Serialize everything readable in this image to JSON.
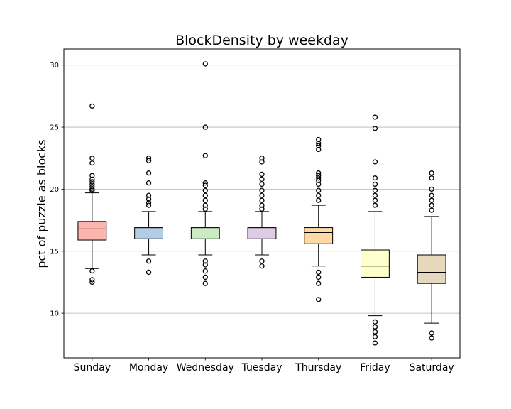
{
  "chart_data": {
    "type": "box",
    "title": "BlockDensity by weekday",
    "xlabel": "",
    "ylabel": "pct of puzzle as blocks",
    "ylim": [
      6.4,
      31.3
    ],
    "yticks": [
      10,
      15,
      20,
      25,
      30
    ],
    "grid": "horizontal",
    "categories": [
      "Sunday",
      "Monday",
      "Wednesday",
      "Tuesday",
      "Thursday",
      "Friday",
      "Saturday"
    ],
    "boxes": [
      {
        "category": "Sunday",
        "whisker_low": 13.6,
        "q1": 15.9,
        "median": 16.8,
        "q3": 17.4,
        "whisker_high": 19.7,
        "color": "#fbb4ae",
        "outliers": [
          26.7,
          22.5,
          22.1,
          21.1,
          20.8,
          20.6,
          20.4,
          20.2,
          20.0,
          19.9,
          13.4,
          12.7,
          12.5
        ]
      },
      {
        "category": "Monday",
        "whisker_low": 14.7,
        "q1": 16.0,
        "median": 16.8,
        "q3": 16.9,
        "whisker_high": 18.2,
        "color": "#b3cde3",
        "outliers": [
          22.5,
          22.3,
          21.3,
          20.5,
          19.5,
          19.2,
          18.9,
          18.7,
          14.2,
          13.3
        ]
      },
      {
        "category": "Wednesday",
        "whisker_low": 14.7,
        "q1": 16.0,
        "median": 16.8,
        "q3": 16.9,
        "whisker_high": 18.2,
        "color": "#ccebc5",
        "outliers": [
          30.1,
          25.0,
          22.7,
          20.5,
          20.3,
          19.9,
          19.5,
          19.1,
          18.7,
          18.4,
          14.2,
          13.9,
          13.4,
          12.9,
          12.4
        ]
      },
      {
        "category": "Tuesday",
        "whisker_low": 14.7,
        "q1": 16.0,
        "median": 16.8,
        "q3": 16.9,
        "whisker_high": 18.2,
        "color": "#decbe4",
        "outliers": [
          22.5,
          22.2,
          21.2,
          20.8,
          20.4,
          19.9,
          19.5,
          19.1,
          18.7,
          18.4,
          14.2,
          13.8
        ]
      },
      {
        "category": "Thursday",
        "whisker_low": 13.8,
        "q1": 15.6,
        "median": 16.5,
        "q3": 16.9,
        "whisker_high": 18.7,
        "color": "#fed9a6",
        "outliers": [
          24.0,
          23.7,
          23.5,
          23.2,
          21.3,
          21.1,
          20.9,
          20.7,
          20.4,
          19.9,
          19.5,
          19.1,
          13.3,
          12.9,
          12.4,
          11.1
        ]
      },
      {
        "category": "Friday",
        "whisker_low": 9.8,
        "q1": 12.9,
        "median": 13.8,
        "q3": 15.1,
        "whisker_high": 18.2,
        "color": "#ffffcc",
        "outliers": [
          25.8,
          24.9,
          22.2,
          20.9,
          20.4,
          19.9,
          19.5,
          19.1,
          18.7,
          9.3,
          8.9,
          8.5,
          8.1,
          7.6
        ]
      },
      {
        "category": "Saturday",
        "whisker_low": 9.2,
        "q1": 12.4,
        "median": 13.3,
        "q3": 14.7,
        "whisker_high": 17.8,
        "color": "#e5d8bd",
        "outliers": [
          21.3,
          20.9,
          20.0,
          19.5,
          19.1,
          18.7,
          18.3,
          8.4,
          8.0
        ]
      }
    ]
  }
}
